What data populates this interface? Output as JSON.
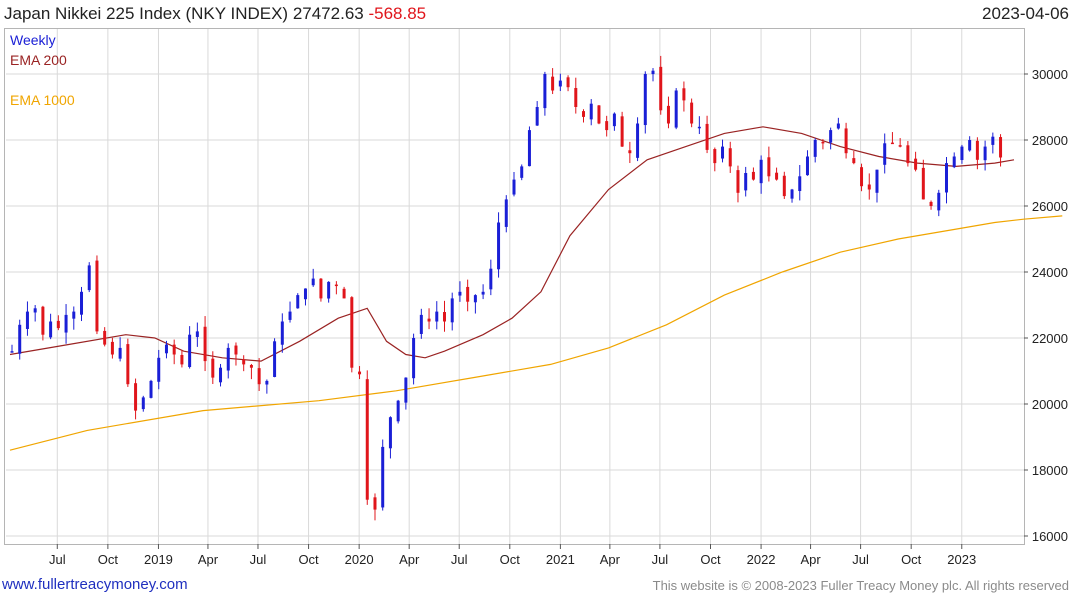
{
  "header": {
    "title": "Japan Nikkei 225 Index (NKY INDEX) 27472.63",
    "change": "-568.85",
    "date": "2023-04-06"
  },
  "legend": {
    "weekly": "Weekly",
    "ema200": "EMA 200",
    "ema1000": "EMA 1000"
  },
  "colors": {
    "up": "#1a1fd6",
    "down": "#e0151b",
    "ema200": "#9a2323",
    "ema1000": "#f0a500",
    "grid": "#d9d9d9"
  },
  "footer": {
    "site": "www.fullertreacymoney.com",
    "copyright": "This website is © 2008-2023 Fuller Treacy Money plc. All rights reserved"
  },
  "chart_data": {
    "type": "candlestick",
    "y_axis": {
      "min": 16000,
      "max": 31000,
      "ticks": [
        16000,
        18000,
        20000,
        22000,
        24000,
        26000,
        28000,
        30000
      ],
      "position": "right"
    },
    "x_axis": {
      "start": "2018-04-06",
      "end": "2023-04-06",
      "tick_labels": [
        {
          "label": "Jul",
          "date": "2018-07-01"
        },
        {
          "label": "Oct",
          "date": "2018-10-01"
        },
        {
          "label": "2019",
          "date": "2019-01-01"
        },
        {
          "label": "Apr",
          "date": "2019-04-01"
        },
        {
          "label": "Jul",
          "date": "2019-07-01"
        },
        {
          "label": "Oct",
          "date": "2019-10-01"
        },
        {
          "label": "2020",
          "date": "2020-01-01"
        },
        {
          "label": "Apr",
          "date": "2020-04-01"
        },
        {
          "label": "Jul",
          "date": "2020-07-01"
        },
        {
          "label": "Oct",
          "date": "2020-10-01"
        },
        {
          "label": "2021",
          "date": "2021-01-01"
        },
        {
          "label": "Apr",
          "date": "2021-04-01"
        },
        {
          "label": "Jul",
          "date": "2021-07-01"
        },
        {
          "label": "Oct",
          "date": "2021-10-01"
        },
        {
          "label": "2022",
          "date": "2022-01-01"
        },
        {
          "label": "Apr",
          "date": "2022-04-01"
        },
        {
          "label": "Jul",
          "date": "2022-07-01"
        },
        {
          "label": "Oct",
          "date": "2022-10-01"
        },
        {
          "label": "2023",
          "date": "2023-01-01"
        }
      ]
    },
    "grid": true,
    "series": [
      {
        "name": "Weekly",
        "kind": "close",
        "values": [
          [
            0,
            21600
          ],
          [
            4,
            22400
          ],
          [
            8,
            22800
          ],
          [
            12,
            22900
          ],
          [
            16,
            22100
          ],
          [
            20,
            22500
          ],
          [
            24,
            22300
          ],
          [
            28,
            22700
          ],
          [
            32,
            22800
          ],
          [
            36,
            23400
          ],
          [
            40,
            24200
          ],
          [
            44,
            22200
          ],
          [
            48,
            21800
          ],
          [
            52,
            21500
          ],
          [
            56,
            21700
          ],
          [
            60,
            20600
          ],
          [
            64,
            19800
          ],
          [
            68,
            20200
          ],
          [
            72,
            20700
          ],
          [
            76,
            21400
          ],
          [
            80,
            21800
          ],
          [
            84,
            21500
          ],
          [
            88,
            21200
          ],
          [
            92,
            22100
          ],
          [
            96,
            22200
          ],
          [
            100,
            21300
          ],
          [
            104,
            20800
          ],
          [
            108,
            21100
          ],
          [
            112,
            21700
          ],
          [
            116,
            21500
          ],
          [
            120,
            21200
          ],
          [
            124,
            21100
          ],
          [
            128,
            20600
          ],
          [
            132,
            20700
          ],
          [
            136,
            21900
          ],
          [
            140,
            22500
          ],
          [
            144,
            22800
          ],
          [
            148,
            23300
          ],
          [
            152,
            23500
          ],
          [
            156,
            23800
          ],
          [
            160,
            23200
          ],
          [
            164,
            23700
          ],
          [
            168,
            23600
          ],
          [
            172,
            23200
          ],
          [
            176,
            21100
          ],
          [
            180,
            20900
          ],
          [
            184,
            17100
          ],
          [
            188,
            16800
          ],
          [
            192,
            18700
          ],
          [
            196,
            19600
          ],
          [
            200,
            20100
          ],
          [
            204,
            20800
          ],
          [
            208,
            22000
          ],
          [
            212,
            22700
          ],
          [
            216,
            22500
          ],
          [
            220,
            22800
          ],
          [
            224,
            22500
          ],
          [
            228,
            23200
          ],
          [
            232,
            23400
          ],
          [
            236,
            23100
          ],
          [
            240,
            23300
          ],
          [
            244,
            23400
          ],
          [
            248,
            24100
          ],
          [
            252,
            25500
          ],
          [
            256,
            26200
          ],
          [
            260,
            26800
          ],
          [
            264,
            27200
          ],
          [
            268,
            28300
          ],
          [
            272,
            29000
          ],
          [
            276,
            30000
          ],
          [
            280,
            29500
          ],
          [
            284,
            29800
          ],
          [
            288,
            29600
          ],
          [
            292,
            29000
          ],
          [
            296,
            28700
          ],
          [
            300,
            29100
          ],
          [
            304,
            28500
          ],
          [
            308,
            28300
          ],
          [
            312,
            28800
          ],
          [
            316,
            27800
          ],
          [
            320,
            27600
          ],
          [
            324,
            28500
          ],
          [
            328,
            30000
          ],
          [
            332,
            30100
          ],
          [
            336,
            28900
          ],
          [
            340,
            28500
          ],
          [
            344,
            29500
          ],
          [
            348,
            29200
          ],
          [
            352,
            28500
          ],
          [
            356,
            28400
          ],
          [
            360,
            27700
          ],
          [
            364,
            27300
          ],
          [
            368,
            27800
          ],
          [
            372,
            27200
          ],
          [
            376,
            26400
          ],
          [
            380,
            27000
          ],
          [
            384,
            26800
          ],
          [
            388,
            27400
          ],
          [
            392,
            26900
          ],
          [
            396,
            26800
          ],
          [
            400,
            26300
          ],
          [
            404,
            26500
          ],
          [
            408,
            26900
          ],
          [
            412,
            27500
          ],
          [
            416,
            28000
          ],
          [
            420,
            27900
          ],
          [
            424,
            28300
          ],
          [
            428,
            28500
          ],
          [
            432,
            27600
          ],
          [
            436,
            27300
          ],
          [
            440,
            26600
          ],
          [
            444,
            26500
          ],
          [
            448,
            27100
          ],
          [
            452,
            27900
          ],
          [
            456,
            27900
          ],
          [
            460,
            27800
          ],
          [
            464,
            27300
          ],
          [
            468,
            27100
          ],
          [
            472,
            26200
          ],
          [
            476,
            26000
          ],
          [
            480,
            26400
          ],
          [
            484,
            27300
          ],
          [
            488,
            27500
          ],
          [
            492,
            27800
          ],
          [
            496,
            28000
          ],
          [
            500,
            27400
          ],
          [
            504,
            27800
          ],
          [
            508,
            28100
          ],
          [
            512,
            27470
          ]
        ]
      },
      {
        "name": "EMA 200",
        "values": [
          [
            0,
            21500
          ],
          [
            30,
            21800
          ],
          [
            60,
            22100
          ],
          [
            75,
            22000
          ],
          [
            90,
            21600
          ],
          [
            110,
            21400
          ],
          [
            130,
            21300
          ],
          [
            150,
            21900
          ],
          [
            170,
            22600
          ],
          [
            185,
            22900
          ],
          [
            195,
            21900
          ],
          [
            205,
            21500
          ],
          [
            215,
            21400
          ],
          [
            225,
            21600
          ],
          [
            245,
            22100
          ],
          [
            260,
            22600
          ],
          [
            275,
            23400
          ],
          [
            290,
            25100
          ],
          [
            310,
            26500
          ],
          [
            330,
            27400
          ],
          [
            350,
            27800
          ],
          [
            370,
            28200
          ],
          [
            390,
            28400
          ],
          [
            410,
            28200
          ],
          [
            430,
            27800
          ],
          [
            450,
            27500
          ],
          [
            470,
            27300
          ],
          [
            490,
            27200
          ],
          [
            510,
            27300
          ],
          [
            520,
            27400
          ]
        ]
      },
      {
        "name": "EMA 1000",
        "values": [
          [
            0,
            18600
          ],
          [
            40,
            19200
          ],
          [
            100,
            19800
          ],
          [
            160,
            20100
          ],
          [
            200,
            20400
          ],
          [
            240,
            20800
          ],
          [
            280,
            21200
          ],
          [
            310,
            21700
          ],
          [
            340,
            22400
          ],
          [
            370,
            23300
          ],
          [
            400,
            24000
          ],
          [
            430,
            24600
          ],
          [
            460,
            25000
          ],
          [
            490,
            25300
          ],
          [
            510,
            25500
          ],
          [
            525,
            25600
          ],
          [
            545,
            25700
          ]
        ]
      }
    ]
  }
}
